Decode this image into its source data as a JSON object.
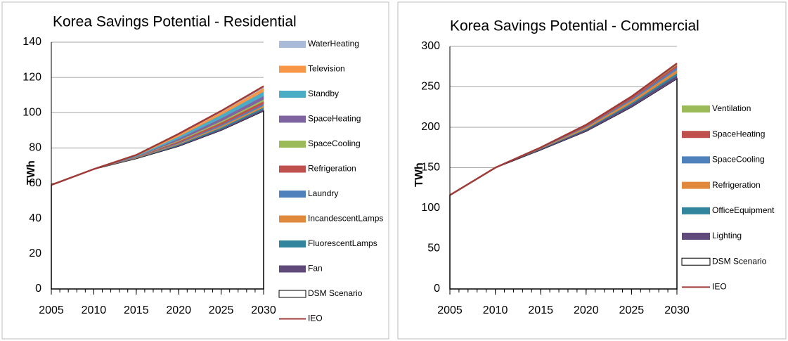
{
  "chart_data": [
    {
      "type": "area",
      "stacked": true,
      "title": "Korea Savings Potential - Residential",
      "ylabel": "TWh",
      "x": [
        2005,
        2010,
        2015,
        2020,
        2025,
        2030
      ],
      "xlim": [
        2005,
        2030
      ],
      "xticks": [
        2005,
        2010,
        2015,
        2020,
        2025,
        2030
      ],
      "ylim": [
        0,
        140
      ],
      "yticks": [
        0,
        20,
        40,
        60,
        80,
        100,
        120,
        140
      ],
      "grid": true,
      "series": [
        {
          "name": "WaterHeating",
          "color": "#a9bbd9",
          "values": [
            0,
            0,
            0.2,
            0.5,
            0.7,
            1
          ]
        },
        {
          "name": "Television",
          "color": "#f79646",
          "values": [
            0,
            0,
            0.3,
            1,
            1.5,
            2
          ]
        },
        {
          "name": "Standby",
          "color": "#4bacc6",
          "values": [
            0,
            0,
            0.4,
            1.2,
            2,
            2.5
          ]
        },
        {
          "name": "SpaceHeating",
          "color": "#8064a2",
          "values": [
            0,
            0,
            0.3,
            1,
            1.6,
            2
          ]
        },
        {
          "name": "SpaceCooling",
          "color": "#9bbb59",
          "values": [
            0,
            0,
            0.1,
            0.5,
            0.8,
            1
          ]
        },
        {
          "name": "Refrigeration",
          "color": "#c0504d",
          "values": [
            0,
            0,
            0.2,
            0.8,
            1.2,
            1.5
          ]
        },
        {
          "name": "Laundry",
          "color": "#4f81bd",
          "values": [
            0,
            0,
            0.1,
            0.5,
            0.8,
            1
          ]
        },
        {
          "name": "IncandescentLamps",
          "color": "#e0883c",
          "values": [
            0,
            0,
            0.2,
            0.5,
            0.8,
            1
          ]
        },
        {
          "name": "FluorescentLamps",
          "color": "#31859c",
          "values": [
            0,
            0,
            0.1,
            0.5,
            0.8,
            1
          ]
        },
        {
          "name": "Fan",
          "color": "#604a7b",
          "values": [
            0,
            0,
            0.1,
            0.5,
            0.8,
            1
          ]
        },
        {
          "name": "DSM Scenario",
          "color": "#ffffff",
          "values": [
            59,
            68,
            74,
            81,
            90,
            101
          ]
        },
        {
          "name": "IEO",
          "type": "line",
          "color": "#9e3b38",
          "values": [
            59,
            68,
            76,
            88,
            101,
            115
          ]
        }
      ]
    },
    {
      "type": "area",
      "stacked": true,
      "title": "Korea Savings Potential - Commercial",
      "ylabel": "TWh",
      "x": [
        2005,
        2010,
        2015,
        2020,
        2025,
        2030
      ],
      "xlim": [
        2005,
        2030
      ],
      "xticks": [
        2005,
        2010,
        2015,
        2020,
        2025,
        2030
      ],
      "ylim": [
        0,
        300
      ],
      "yticks": [
        0,
        50,
        100,
        150,
        200,
        250,
        300
      ],
      "grid": true,
      "series": [
        {
          "name": "Ventilation",
          "color": "#9bbb59",
          "values": [
            0,
            0,
            0.2,
            1,
            1,
            2
          ]
        },
        {
          "name": "SpaceHeating",
          "color": "#c0504d",
          "values": [
            0,
            0,
            0.3,
            1,
            2,
            3
          ]
        },
        {
          "name": "SpaceCooling",
          "color": "#4f81bd",
          "values": [
            0,
            0,
            0.5,
            1,
            2,
            3
          ]
        },
        {
          "name": "Refrigeration",
          "color": "#e0883c",
          "values": [
            0,
            0,
            0.5,
            2,
            3,
            4
          ]
        },
        {
          "name": "OfficeEquipment",
          "color": "#31859c",
          "values": [
            0,
            0,
            0.5,
            1,
            2,
            3
          ]
        },
        {
          "name": "Lighting",
          "color": "#604a7b",
          "values": [
            0,
            0,
            1,
            2,
            3,
            4
          ]
        },
        {
          "name": "DSM Scenario",
          "color": "#ffffff",
          "values": [
            116,
            150,
            172,
            195,
            225,
            260
          ]
        },
        {
          "name": "IEO",
          "type": "line",
          "color": "#9e3b38",
          "values": [
            116,
            150,
            175,
            203,
            238,
            279
          ]
        }
      ]
    }
  ]
}
